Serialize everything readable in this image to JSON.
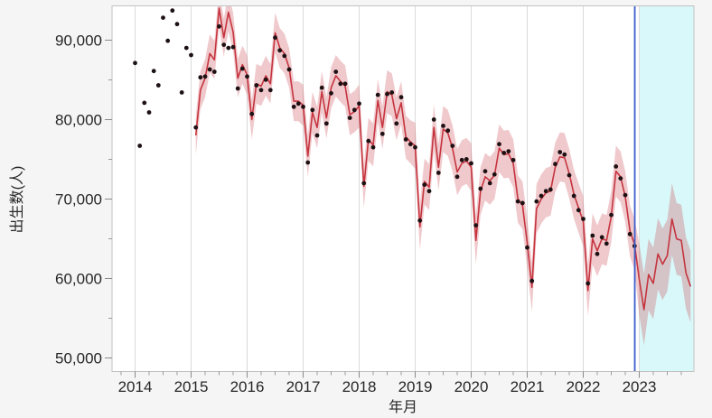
{
  "chart_data": {
    "type": "line",
    "xlabel": "年月",
    "ylabel": "出生数(人)",
    "x_tick_labels": [
      "2014",
      "2015",
      "2016",
      "2017",
      "2018",
      "2019",
      "2020",
      "2021",
      "2022",
      "2023"
    ],
    "x_minor_tick_interval_years": 0.25,
    "y_ticks": [
      {
        "value": 50000,
        "label": "50,000"
      },
      {
        "value": 60000,
        "label": "60,000"
      },
      {
        "value": 70000,
        "label": "70,000"
      },
      {
        "value": 80000,
        "label": "80,000"
      },
      {
        "value": 90000,
        "label": "90,000"
      }
    ],
    "y_minor_ticks": [
      55000,
      65000,
      75000,
      85000
    ],
    "x_range_years": [
      2013.589,
      2023.976
    ],
    "y_range": [
      48400,
      94300
    ],
    "grid": "vertical-year-lines-only",
    "legend": "none",
    "series": [
      {
        "name": "observed",
        "type": "scatter",
        "start_month": "2014-01",
        "values": [
          87100,
          76700,
          82100,
          80900,
          86100,
          84300,
          92800,
          89900,
          93700,
          92000,
          83400,
          89000,
          88100,
          79000,
          85300,
          85400,
          86300,
          86000,
          91700,
          89400,
          89000,
          89100,
          83900,
          86400,
          85400,
          80700,
          84300,
          83700,
          85000,
          83700,
          90300,
          88700,
          88000,
          86300,
          81600,
          82000,
          81600,
          74600,
          81200,
          78000,
          84000,
          79500,
          83300,
          86000,
          84500,
          84500,
          80200,
          81200,
          82000,
          72000,
          77300,
          76500,
          83100,
          78200,
          83200,
          83400,
          79500,
          82800,
          77500,
          76900,
          76500,
          67300,
          71800,
          71000,
          80000,
          73300,
          79200,
          78600,
          76700,
          72800,
          74900,
          75000,
          74500,
          66700,
          71300,
          73500,
          72000,
          73100,
          76900,
          75800,
          76000,
          74900,
          69700,
          69500,
          63900,
          59700,
          69700,
          70400,
          71000,
          71200,
          74400,
          75900,
          75600,
          73000,
          70400,
          68600,
          67500,
          59400,
          65400,
          63100,
          65200,
          64400,
          68000,
          74100,
          72600,
          70500,
          65600,
          64100
        ]
      },
      {
        "name": "fit",
        "type": "line",
        "start_month": "2015-02",
        "values": [
          78000,
          83700,
          85200,
          88300,
          87500,
          94000,
          90300,
          93500,
          91000,
          85200,
          86900,
          85600,
          80000,
          84500,
          84200,
          85500,
          84500,
          90900,
          89000,
          88300,
          86500,
          82300,
          82300,
          81800,
          75400,
          80900,
          79000,
          83500,
          80200,
          84000,
          85500,
          84800,
          84200,
          80600,
          81000,
          81700,
          71600,
          77500,
          76800,
          82400,
          79000,
          83500,
          83100,
          80100,
          82100,
          77800,
          77200,
          76700,
          66500,
          72200,
          71500,
          79000,
          74000,
          78800,
          78300,
          76400,
          73400,
          74500,
          74800,
          74000,
          64800,
          71000,
          72800,
          72300,
          73000,
          76400,
          75600,
          75700,
          74500,
          70000,
          69200,
          64500,
          58900,
          68800,
          70000,
          70800,
          71000,
          74000,
          75300,
          75200,
          73200,
          70600,
          68900,
          67200,
          58500,
          65000,
          63500,
          65000,
          64800,
          67800,
          73500,
          72800,
          70300,
          66000,
          64300
        ]
      },
      {
        "name": "forecast",
        "type": "line",
        "start_month": "2023-01",
        "values": [
          59900,
          56100,
          60500,
          59400,
          63100,
          61800,
          62900,
          67500,
          65000,
          64800,
          60700,
          59000
        ]
      }
    ],
    "ci_halfwidth_by_year": {
      "2015": 2400,
      "2016": 2500,
      "2017": 2600,
      "2018": 2700,
      "2019": 2900,
      "2020": 3000,
      "2021": 3100,
      "2022": 3200,
      "2023": 4500
    },
    "annotations": {
      "last_observed_month": "2022-12",
      "forecast_divider_year": 2022.92,
      "forecast_region_years": [
        2023.005,
        2023.976
      ]
    }
  },
  "colors": {
    "background": "#f5f5f6",
    "plot_background": "#ffffff",
    "grid": "#dadada",
    "frame": "#c2c2c2",
    "text": "#262626",
    "observed_dot": "#1d1114",
    "fit_line": "#c5343e",
    "band_fill": "rgba(200,60,75,0.28)",
    "forecast_region": "#d9f8f9",
    "divider_line": "#3c5ecc"
  }
}
